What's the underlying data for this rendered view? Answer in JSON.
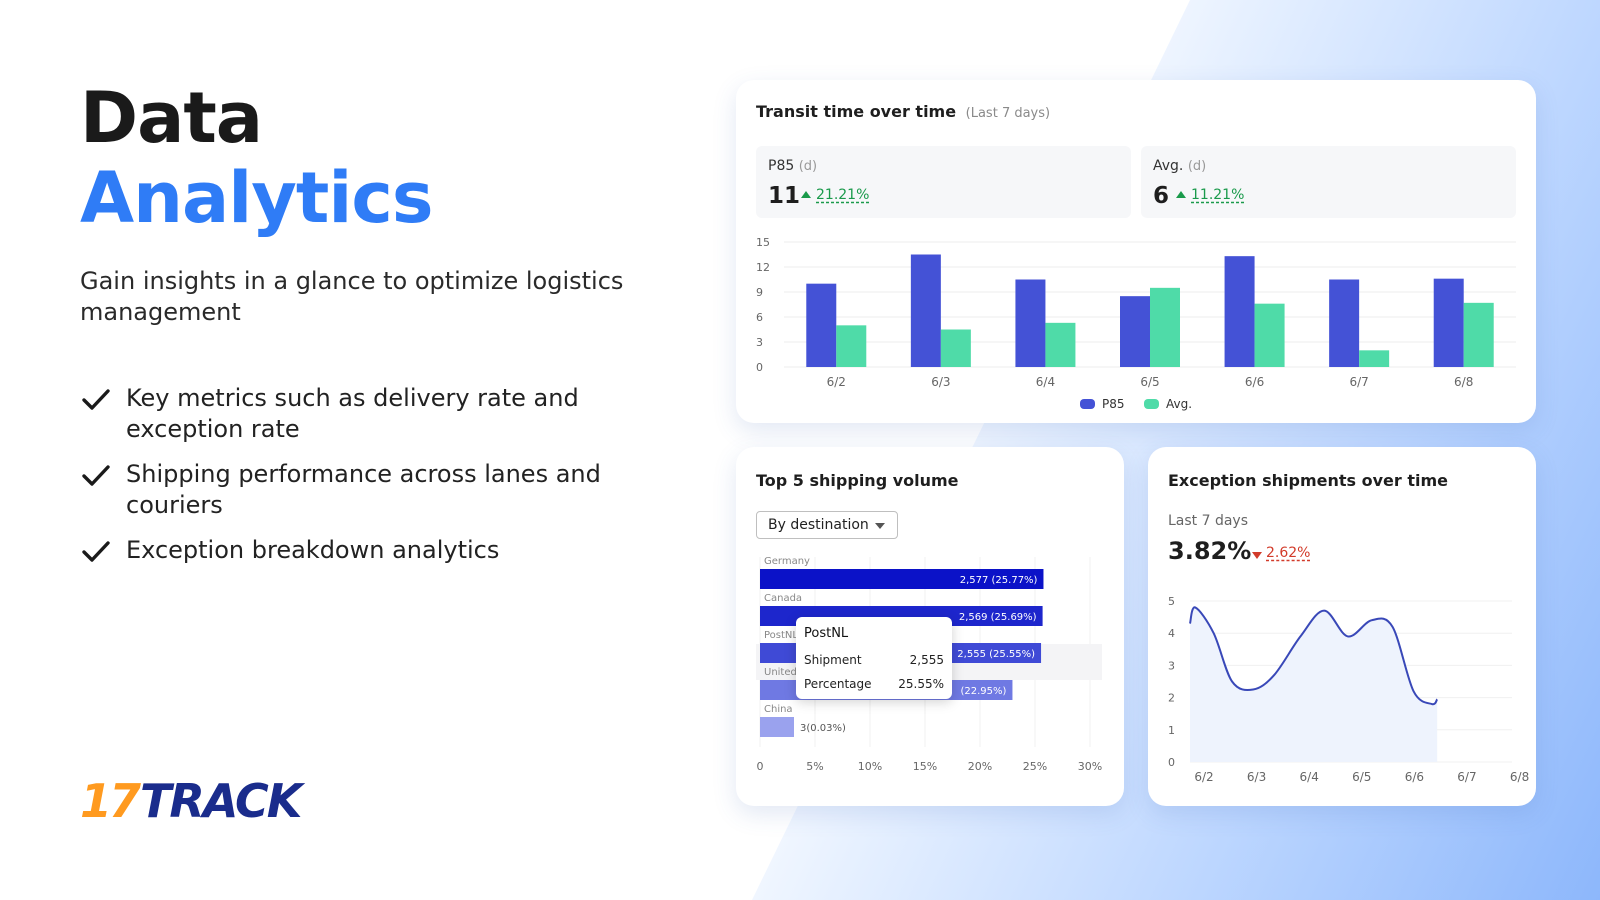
{
  "hero": {
    "title_line1": "Data",
    "title_line2": "Analytics",
    "subtitle": "Gain insights in a glance to optimize logistics management",
    "features": [
      "Key metrics such as delivery rate and exception rate",
      "Shipping performance across lanes and couriers",
      "Exception breakdown analytics"
    ]
  },
  "logo": {
    "number": "17",
    "word": "TRACK"
  },
  "colors": {
    "accent": "#2f7cf6",
    "p85": "#4452d6",
    "avg": "#4fdba8",
    "up": "#1a9a4b",
    "down": "#d23b2a"
  },
  "transit": {
    "title": "Transit time over time",
    "period": "(Last 7 days)",
    "stats": [
      {
        "label": "P85",
        "unit": "(d)",
        "value": "11",
        "delta": "21.21%",
        "direction": "up"
      },
      {
        "label": "Avg.",
        "unit": "(d)",
        "value": "6",
        "delta": "11.21%",
        "direction": "up"
      }
    ],
    "legend": [
      "P85",
      "Avg."
    ]
  },
  "volume": {
    "title": "Top 5 shipping volume",
    "dropdown": "By destination",
    "tooltip": {
      "title": "PostNL",
      "rows": [
        {
          "label": "Shipment",
          "value": "2,555"
        },
        {
          "label": "Percentage",
          "value": "25.55%"
        }
      ]
    }
  },
  "exceptions": {
    "title": "Exception shipments over time",
    "period": "Last 7 days",
    "value": "3.82%",
    "delta": "2.62%",
    "direction": "down"
  },
  "chart_data": [
    {
      "type": "bar",
      "categories": [
        "6/2",
        "6/3",
        "6/4",
        "6/5",
        "6/6",
        "6/7",
        "6/8"
      ],
      "series": [
        {
          "name": "P85",
          "values": [
            10,
            13.5,
            10.5,
            8.5,
            13.3,
            10.5,
            10.6
          ]
        },
        {
          "name": "Avg.",
          "values": [
            5,
            4.5,
            5.3,
            9.5,
            7.6,
            2,
            7.7
          ]
        }
      ],
      "yticks": [
        "0",
        "3",
        "6",
        "9",
        "12",
        "15"
      ],
      "ylim": [
        0,
        15
      ],
      "legend_position": "bottom",
      "grid": true
    },
    {
      "type": "bar",
      "orientation": "horizontal",
      "categories": [
        "Germany",
        "Canada",
        "PostNL",
        "United",
        "China"
      ],
      "values": [
        25.77,
        25.69,
        25.55,
        22.95,
        0.03
      ],
      "labels": [
        "2,577 (25.77%)",
        "2,569 (25.69%)",
        "2,555 (25.55%)",
        "(22.95%)",
        "3(0.03%)"
      ],
      "xticks": [
        "0",
        "5%",
        "10%",
        "15%",
        "20%",
        "25%",
        "30%"
      ],
      "xlim": [
        0,
        30
      ],
      "grid": true
    },
    {
      "type": "area",
      "x": [
        "6/2",
        "6/3",
        "6/4",
        "6/5",
        "6/6",
        "6/7",
        "6/8"
      ],
      "points": [
        [
          0,
          4.3
        ],
        [
          0.1,
          4.8
        ],
        [
          0.45,
          4.0
        ],
        [
          0.8,
          2.5
        ],
        [
          1.2,
          2.25
        ],
        [
          1.6,
          2.7
        ],
        [
          2.1,
          3.9
        ],
        [
          2.55,
          4.7
        ],
        [
          3.0,
          3.9
        ],
        [
          3.45,
          4.4
        ],
        [
          3.85,
          4.2
        ],
        [
          4.25,
          2.2
        ],
        [
          4.6,
          1.8
        ],
        [
          4.7,
          1.95
        ]
      ],
      "yticks": [
        "0",
        "1",
        "2",
        "3",
        "4",
        "5"
      ],
      "ylim": [
        0,
        5
      ],
      "grid": true
    }
  ]
}
